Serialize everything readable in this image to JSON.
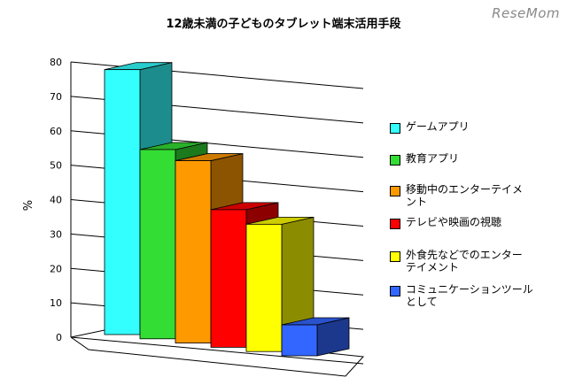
{
  "watermark": "ReseMom",
  "chart_data": {
    "type": "bar",
    "title": "12歳未満の子どものタブレット端末活用手段",
    "ylabel": "%",
    "xlabel": "",
    "ylim": [
      0,
      80
    ],
    "yticks": [
      0,
      10,
      20,
      30,
      40,
      50,
      60,
      70,
      80
    ],
    "grid": true,
    "legend_position": "right",
    "categories": [
      "ゲームアプリ",
      "教育アプリ",
      "移動中のエンターテイメント",
      "テレビや映画の視聴",
      "外食先などでのエンターテイメント",
      "コミュニケーションツールとして"
    ],
    "legend_lines": [
      [
        "ゲームアプリ"
      ],
      [
        "教育アプリ"
      ],
      [
        "移動中のエンターテイメ",
        "ント"
      ],
      [
        "テレビや映画の視聴"
      ],
      [
        "外食先などでのエンター",
        "テイメント"
      ],
      [
        "コミュニケーションツール",
        "として"
      ]
    ],
    "values": [
      77,
      55,
      53,
      40,
      37,
      9
    ],
    "colors": [
      "#33ffff",
      "#33dd33",
      "#ff9900",
      "#ff0000",
      "#ffff00",
      "#3366ff"
    ]
  }
}
